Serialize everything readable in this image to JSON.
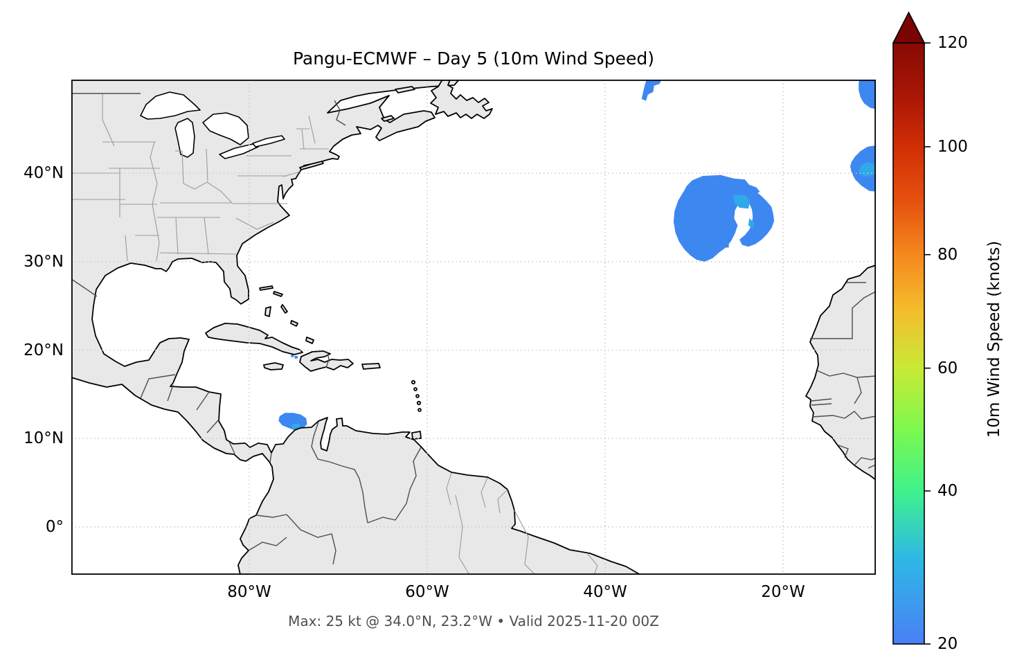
{
  "title": "Pangu-ECMWF – Day 5 (10m Wind Speed)",
  "caption": "Max: 25 kt @ 34.0°N, 23.2°W • Valid 2025-11-20 00Z",
  "axes": {
    "x_ticks": [
      {
        "label": "80°W",
        "lon_w": 80
      },
      {
        "label": "60°W",
        "lon_w": 60
      },
      {
        "label": "40°W",
        "lon_w": 40
      },
      {
        "label": "20°W",
        "lon_w": 20
      }
    ],
    "y_ticks": [
      {
        "label": "40°N",
        "lat": 40
      },
      {
        "label": "30°N",
        "lat": 30
      },
      {
        "label": "20°N",
        "lat": 20
      },
      {
        "label": "10°N",
        "lat": 10
      },
      {
        "label": "0°",
        "lat": 0
      }
    ]
  },
  "colorbar": {
    "label": "10m Wind Speed (knots)",
    "ticks": [
      20,
      40,
      60,
      80,
      100,
      120
    ],
    "vmin": 20,
    "vmax": 120,
    "extend": "max",
    "gamma": 0.85,
    "stops": [
      [
        20,
        "#4a7ff5"
      ],
      [
        30,
        "#2eb8e6"
      ],
      [
        40,
        "#3ff28b"
      ],
      [
        50,
        "#7ef84c"
      ],
      [
        60,
        "#c9e936"
      ],
      [
        70,
        "#f5bd2c"
      ],
      [
        80,
        "#f5881e"
      ],
      [
        90,
        "#e5500e"
      ],
      [
        100,
        "#d22e06"
      ],
      [
        110,
        "#a81605"
      ],
      [
        120,
        "#870a04"
      ]
    ],
    "arrow_color": "#7a0403"
  },
  "chart_data": {
    "type": "heatmap",
    "title": "Pangu-ECMWF – Day 5 (10m Wind Speed)",
    "units": "knots",
    "threshold_kt": 20,
    "max": {
      "value_kt": 25,
      "lat": 34.0,
      "lon_w": 23.2
    },
    "valid_time": "2025-11-20 00Z",
    "extent": {
      "lon_west": 100,
      "lon_east": 9.57,
      "lat_south": -5.41,
      "lat_north": 50.59
    },
    "palette": {
      "base": "#3d87f0",
      "bright": "#2fa9e9"
    },
    "features": [
      {
        "name": "central-atlantic-patch-main",
        "level_kt": 21,
        "intensity": "base",
        "outline": [
          [
            30.2,
            39.2
          ],
          [
            29,
            39.7
          ],
          [
            27,
            39.8
          ],
          [
            25.5,
            39.4
          ],
          [
            24.3,
            39.3
          ],
          [
            23.8,
            38.7
          ],
          [
            23,
            38.4
          ],
          [
            22.6,
            37.9
          ],
          [
            24,
            37.3
          ],
          [
            24.9,
            36.7
          ],
          [
            25.4,
            35.8
          ],
          [
            25.5,
            34.9
          ],
          [
            25.1,
            34.1
          ],
          [
            25.4,
            33.2
          ],
          [
            25.8,
            32.4
          ],
          [
            26.3,
            31.7
          ],
          [
            27.1,
            31.1
          ],
          [
            27.9,
            30.4
          ],
          [
            28.8,
            30.0
          ],
          [
            29.7,
            30.2
          ],
          [
            30.4,
            30.7
          ],
          [
            31.1,
            31.4
          ],
          [
            31.7,
            32.3
          ],
          [
            32.1,
            33.3
          ],
          [
            32.3,
            34.5
          ],
          [
            32.2,
            35.7
          ],
          [
            31.8,
            36.9
          ],
          [
            31.2,
            37.9
          ],
          [
            30.8,
            38.6
          ]
        ]
      },
      {
        "name": "central-atlantic-patch-arm",
        "level_kt": 22,
        "intensity": "base",
        "outline": [
          [
            23.9,
            38.3
          ],
          [
            23.1,
            38.0
          ],
          [
            22.4,
            37.4
          ],
          [
            21.8,
            36.8
          ],
          [
            21.3,
            36.2
          ],
          [
            21.1,
            35.4
          ],
          [
            21.0,
            34.6
          ],
          [
            21.3,
            33.8
          ],
          [
            21.8,
            33.1
          ],
          [
            22.4,
            32.5
          ],
          [
            23.1,
            32.0
          ],
          [
            23.9,
            31.7
          ],
          [
            24.6,
            31.9
          ],
          [
            24.9,
            32.5
          ],
          [
            24.3,
            33.0
          ],
          [
            23.8,
            33.6
          ],
          [
            23.5,
            34.3
          ],
          [
            23.4,
            35.1
          ],
          [
            23.5,
            35.9
          ],
          [
            23.8,
            36.6
          ],
          [
            24.3,
            37.2
          ],
          [
            24.7,
            37.8
          ]
        ]
      },
      {
        "name": "central-atlantic-patch-strip",
        "level_kt": 20,
        "intensity": "base",
        "outline": [
          [
            26.1,
            33.8
          ],
          [
            26.5,
            33.8
          ],
          [
            26.5,
            31.6
          ],
          [
            26.1,
            31.6
          ]
        ]
      },
      {
        "name": "central-atlantic-core-north",
        "level_kt": 24,
        "intensity": "bright",
        "outline": [
          [
            25.6,
            37.6
          ],
          [
            24.2,
            37.5
          ],
          [
            23.7,
            36.9
          ],
          [
            23.9,
            36.0
          ],
          [
            24.9,
            36.1
          ],
          [
            25.5,
            36.7
          ]
        ]
      },
      {
        "name": "central-atlantic-core-arm",
        "level_kt": 25,
        "intensity": "bright",
        "outline": [
          [
            23.8,
            34.9
          ],
          [
            23.2,
            34.4
          ],
          [
            23.4,
            33.7
          ],
          [
            23.9,
            34.1
          ]
        ]
      },
      {
        "name": "venezuela-coast-patch",
        "level_kt": 21,
        "intensity": "base",
        "outline": [
          [
            76.6,
            12.5
          ],
          [
            76.0,
            12.9
          ],
          [
            75.0,
            12.9
          ],
          [
            74.2,
            12.7
          ],
          [
            73.6,
            12.3
          ],
          [
            73.5,
            11.6
          ],
          [
            74.0,
            11.1
          ],
          [
            74.8,
            10.9
          ],
          [
            75.6,
            11.2
          ],
          [
            76.3,
            11.5
          ],
          [
            76.7,
            12.0
          ]
        ]
      },
      {
        "name": "venezuela-coast-core",
        "level_kt": 23,
        "intensity": "bright",
        "outline": [
          [
            75.2,
            11.6
          ],
          [
            74.4,
            11.7
          ],
          [
            74.2,
            11.2
          ],
          [
            75.0,
            11.05
          ],
          [
            75.3,
            11.3
          ]
        ]
      },
      {
        "name": "newfoundland-edge-pixel",
        "level_kt": 20,
        "intensity": "base",
        "outline": [
          [
            59.3,
            50.7
          ],
          [
            58.8,
            50.7
          ],
          [
            58.8,
            50.15
          ],
          [
            59.3,
            50.15
          ]
        ]
      },
      {
        "name": "north-atlantic-edge-patch",
        "level_kt": 21,
        "intensity": "base",
        "outline": [
          [
            35.3,
            50.7
          ],
          [
            33.6,
            50.7
          ],
          [
            33.9,
            50.1
          ],
          [
            34.5,
            49.9
          ],
          [
            34.6,
            49.2
          ],
          [
            35.2,
            48.9
          ],
          [
            35.4,
            48.2
          ],
          [
            35.9,
            48.4
          ],
          [
            35.7,
            49.3
          ],
          [
            35.5,
            50.1
          ]
        ]
      },
      {
        "name": "biscay-corner-patch",
        "level_kt": 21,
        "intensity": "base",
        "outline": [
          [
            11.4,
            50.7
          ],
          [
            9.3,
            50.7
          ],
          [
            9.3,
            47.2
          ],
          [
            10.2,
            47.4
          ],
          [
            10.9,
            47.9
          ],
          [
            11.3,
            48.6
          ],
          [
            11.5,
            49.4
          ],
          [
            11.5,
            50.2
          ]
        ]
      },
      {
        "name": "iberia-coast-patch",
        "level_kt": 22,
        "intensity": "base",
        "outline": [
          [
            12.3,
            41.3
          ],
          [
            11.9,
            41.9
          ],
          [
            11.3,
            42.5
          ],
          [
            10.5,
            43.0
          ],
          [
            9.3,
            43.2
          ],
          [
            9.3,
            37.9
          ],
          [
            10.3,
            38.0
          ],
          [
            11.2,
            38.6
          ],
          [
            11.9,
            39.3
          ],
          [
            12.3,
            40.1
          ],
          [
            12.45,
            40.8
          ]
        ]
      },
      {
        "name": "iberia-coast-core",
        "level_kt": 23,
        "intensity": "bright",
        "outline": [
          [
            11.5,
            40.3
          ],
          [
            11.1,
            41.0
          ],
          [
            10.3,
            41.3
          ],
          [
            9.7,
            40.9
          ],
          [
            9.7,
            39.9
          ],
          [
            10.5,
            39.6
          ],
          [
            11.3,
            39.8
          ]
        ]
      },
      {
        "name": "hispaniola-pixel-1",
        "level_kt": 20,
        "intensity": "base",
        "outline": [
          [
            75.3,
            19.5
          ],
          [
            75.0,
            19.5
          ],
          [
            75.0,
            19.2
          ],
          [
            75.3,
            19.2
          ]
        ]
      },
      {
        "name": "hispaniola-pixel-2",
        "level_kt": 20,
        "intensity": "base",
        "outline": [
          [
            74.9,
            19.35
          ],
          [
            74.55,
            19.35
          ],
          [
            74.55,
            19.05
          ],
          [
            74.9,
            19.05
          ]
        ]
      }
    ]
  },
  "map_style": {
    "land_color": "#e8e8e8",
    "ocean_color": "#ffffff",
    "coastline_color": "#000000",
    "country_border_color": "#4d4d4d",
    "state_border_color": "#9a9a9a",
    "gridline_color": "#c8c8c8"
  }
}
